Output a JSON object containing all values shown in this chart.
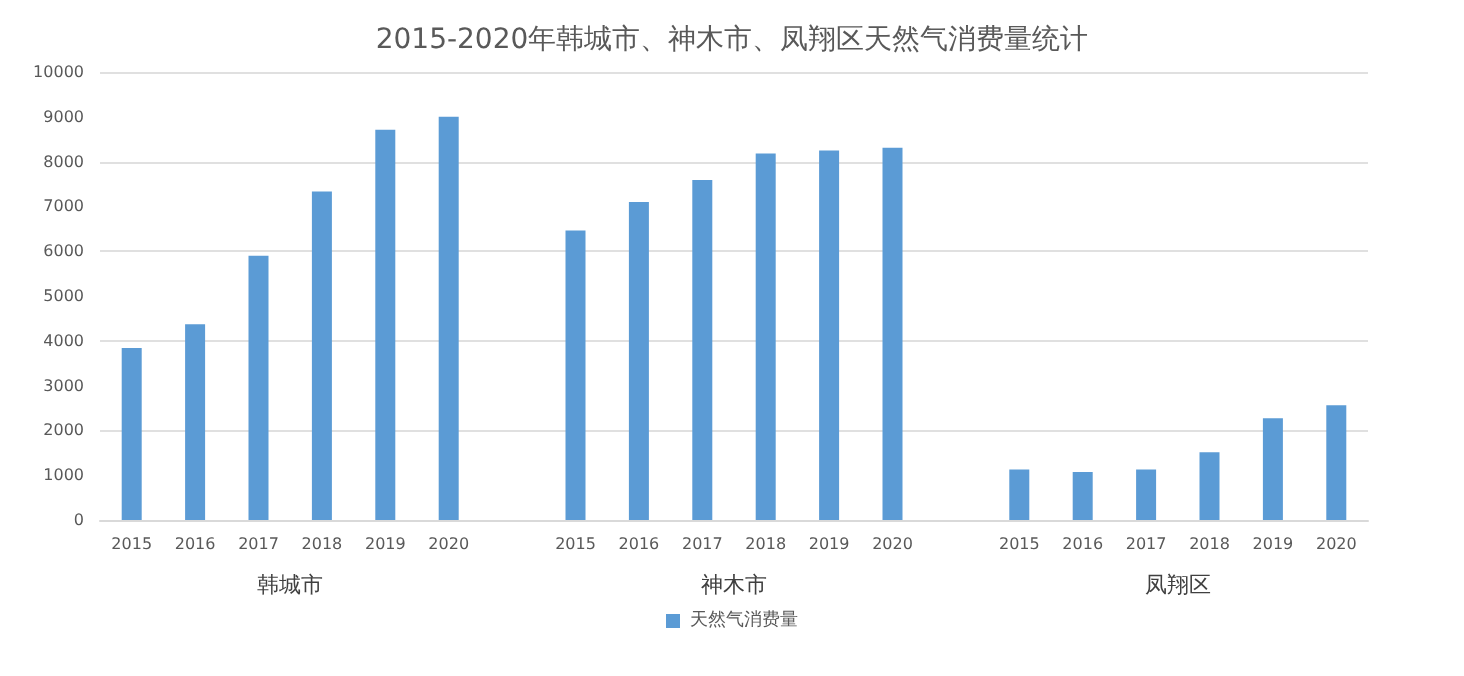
{
  "chart_data": {
    "type": "bar",
    "title": "2015-2020年韩城市、神木市、凤翔区天然气消费量统计",
    "categories": [
      "2015",
      "2016",
      "2017",
      "2018",
      "2019",
      "2020",
      null,
      "2015",
      "2016",
      "2017",
      "2018",
      "2019",
      "2020",
      null,
      "2015",
      "2016",
      "2017",
      "2018",
      "2019",
      "2020"
    ],
    "series": [
      {
        "name": "天然气消费量",
        "color": "#5b9bd5",
        "values": [
          3840,
          4370,
          5900,
          7330,
          8710,
          9000,
          null,
          6460,
          7100,
          7590,
          8180,
          8250,
          8310,
          null,
          1130,
          1070,
          1130,
          1510,
          2270,
          2560
        ]
      }
    ],
    "annotations": [
      "韩城市",
      "神木市",
      "凤翔区"
    ],
    "ylim": [
      0,
      10000
    ],
    "yticks": [
      0,
      1000,
      2000,
      3000,
      4000,
      5000,
      6000,
      7000,
      8000,
      9000,
      10000
    ],
    "grid": "y",
    "legend": "bottom"
  }
}
